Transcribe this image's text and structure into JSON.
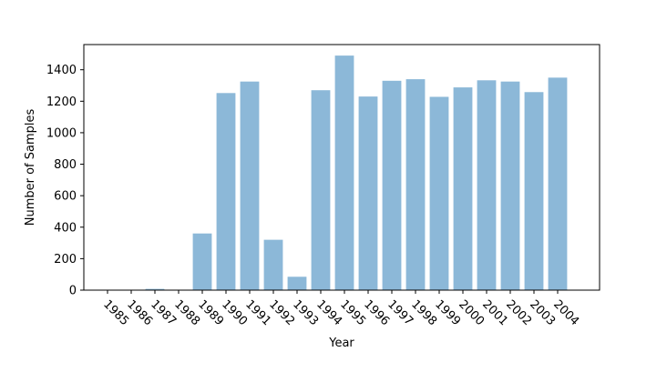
{
  "chart_data": {
    "type": "bar",
    "title": "",
    "xlabel": "Year",
    "ylabel": "Number of Samples",
    "categories": [
      "1985",
      "1986",
      "1987",
      "1988",
      "1989",
      "1990",
      "1991",
      "1992",
      "1993",
      "1994",
      "1995",
      "1996",
      "1997",
      "1998",
      "1999",
      "2000",
      "2001",
      "2002",
      "2003",
      "2004"
    ],
    "values": [
      1,
      1,
      8,
      2,
      360,
      1252,
      1325,
      320,
      85,
      1270,
      1490,
      1230,
      1330,
      1340,
      1228,
      1288,
      1333,
      1325,
      1258,
      1350
    ],
    "ylim": [
      0,
      1560
    ],
    "yticks": [
      0,
      200,
      400,
      600,
      800,
      1000,
      1200,
      1400
    ],
    "bar_color": "#8cb8d8",
    "grid": false,
    "legend": "none"
  }
}
